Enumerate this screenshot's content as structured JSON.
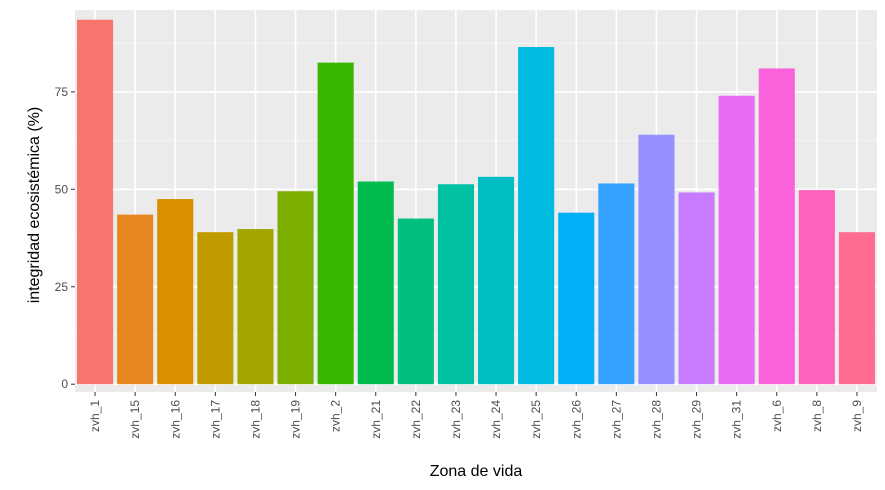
{
  "chart_data": {
    "type": "bar",
    "title": "",
    "xlabel": "Zona de vida",
    "ylabel": "integridad ecosistémica (%)",
    "ylim": [
      -2,
      96
    ],
    "yticks": [
      0,
      25,
      50,
      75
    ],
    "grid": true,
    "legend": "none",
    "categories": [
      "zvh_1",
      "zvh_15",
      "zvh_16",
      "zvh_17",
      "zvh_18",
      "zvh_19",
      "zvh_2",
      "zvh_21",
      "zvh_22",
      "zvh_23",
      "zvh_24",
      "zvh_25",
      "zvh_26",
      "zvh_27",
      "zvh_28",
      "zvh_29",
      "zvh_31",
      "zvh_6",
      "zvh_8",
      "zvh_9"
    ],
    "values": [
      93.5,
      43.5,
      47.5,
      39,
      39.8,
      49.5,
      82.5,
      52,
      42.5,
      51.3,
      53.2,
      86.5,
      44,
      51.5,
      64,
      49.2,
      74,
      81,
      49.8,
      39
    ],
    "colors": [
      "#F8766D",
      "#E7851E",
      "#D89000",
      "#C09B00",
      "#A3A500",
      "#7CAE00",
      "#39B600",
      "#00BB4E",
      "#00BF7D",
      "#00C1A3",
      "#00BFC4",
      "#00BAE0",
      "#00B0F6",
      "#35A2FF",
      "#9590FF",
      "#C77CFF",
      "#E76BF3",
      "#FA62DB",
      "#FF62BC",
      "#FF6C91"
    ]
  }
}
